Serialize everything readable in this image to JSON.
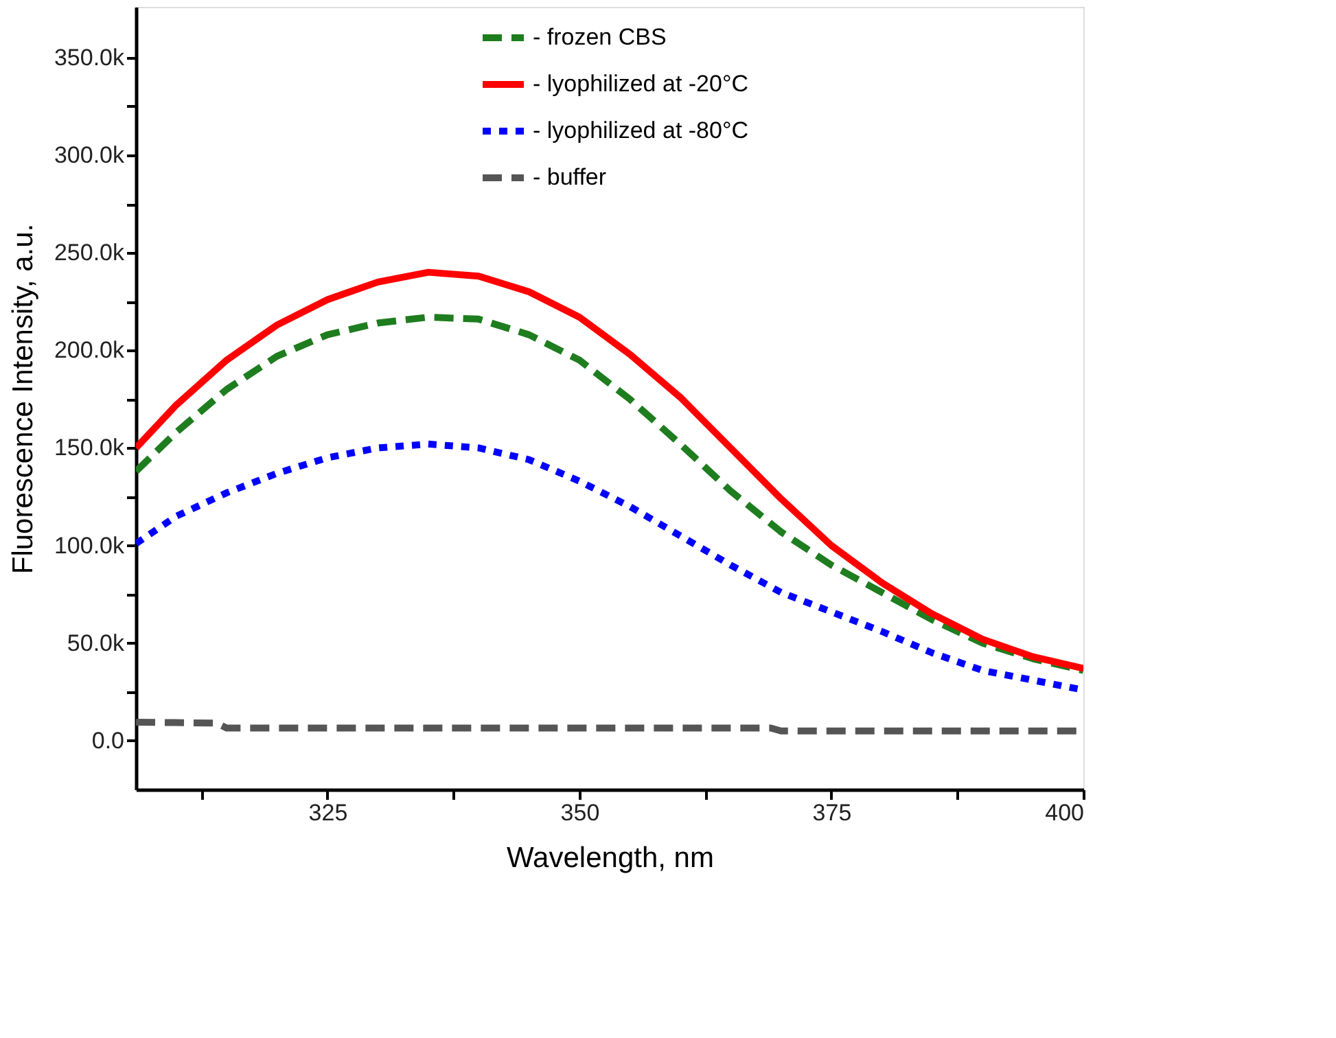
{
  "chart_data": {
    "type": "line",
    "xlabel": "Wavelength, nm",
    "ylabel": "Fluorescence Intensity, a.u.",
    "xlim": [
      306,
      400
    ],
    "ylim": [
      -25000,
      376000
    ],
    "xticks": [
      {
        "value": 312.5,
        "label": null
      },
      325,
      {
        "value": 337.5,
        "label": null
      },
      350,
      {
        "value": 362.5,
        "label": null
      },
      375,
      {
        "value": 387.5,
        "label": null
      },
      400
    ],
    "yticks": [
      {
        "value": 0,
        "label": "0.0"
      },
      {
        "value": 25000,
        "label": null
      },
      {
        "value": 50000,
        "label": "50.0k"
      },
      {
        "value": 75000,
        "label": null
      },
      {
        "value": 100000,
        "label": "100.0k"
      },
      {
        "value": 125000,
        "label": null
      },
      {
        "value": 150000,
        "label": "150.0k"
      },
      {
        "value": 175000,
        "label": null
      },
      {
        "value": 200000,
        "label": "200.0k"
      },
      {
        "value": 225000,
        "label": null
      },
      {
        "value": 250000,
        "label": "250.0k"
      },
      {
        "value": 275000,
        "label": null
      },
      {
        "value": 300000,
        "label": "300.0k"
      },
      {
        "value": 325000,
        "label": null
      },
      {
        "value": 350000,
        "label": "350.0k"
      }
    ],
    "grid": false,
    "legend": "top",
    "marker": "none",
    "x": [
      306,
      310,
      315,
      320,
      325,
      330,
      335,
      340,
      345,
      350,
      355,
      360,
      365,
      370,
      375,
      380,
      385,
      390,
      395,
      400
    ],
    "series": [
      {
        "name": "- frozen CBS",
        "color": "#1e7d1e",
        "line_style": "dashed",
        "values": [
          138000,
          158000,
          180000,
          197000,
          208000,
          214000,
          217000,
          216000,
          208000,
          195000,
          175000,
          152000,
          128000,
          107000,
          90000,
          76000,
          62000,
          50000,
          42000,
          36000
        ]
      },
      {
        "name": "- lyophilized at -20°C",
        "color": "#ff0000",
        "line_style": "solid",
        "values": [
          150000,
          172000,
          195000,
          213000,
          226000,
          235000,
          240000,
          238000,
          230000,
          217000,
          198000,
          176000,
          150000,
          124000,
          100000,
          81000,
          65000,
          52000,
          43000,
          37000
        ]
      },
      {
        "name": "- lyophilized at -80°C",
        "color": "#0000ff",
        "line_style": "dotted",
        "values": [
          101000,
          115000,
          127000,
          137000,
          145000,
          150000,
          152000,
          150000,
          144000,
          133000,
          120000,
          105000,
          90000,
          76000,
          66000,
          56000,
          45000,
          36000,
          31000,
          26000
        ]
      },
      {
        "name": "- buffer",
        "color": "#555555",
        "line_style": "dashed",
        "x": [
          306,
          314,
          315,
          340,
          369,
          370,
          385,
          400
        ],
        "values": [
          9500,
          9000,
          6500,
          6500,
          6500,
          5000,
          5000,
          5000
        ]
      }
    ]
  }
}
